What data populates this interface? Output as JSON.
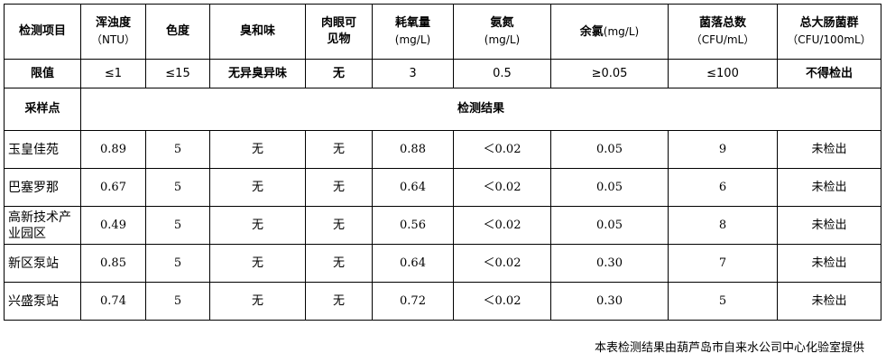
{
  "header": [
    {
      "name": "检测项目",
      "unit": ""
    },
    {
      "name": "浑浊度",
      "unit": "（NTU）"
    },
    {
      "name": "色度",
      "unit": ""
    },
    {
      "name": "臭和味",
      "unit": ""
    },
    {
      "name": "肉眼可见物",
      "unit": ""
    },
    {
      "name": "耗氧量",
      "unit": "(mg/L)"
    },
    {
      "name": "氨氮",
      "unit": "(mg/L)"
    },
    {
      "name": "余氯",
      "unit": "(mg/L)"
    },
    {
      "name": "菌落总数",
      "unit": "（CFU/mL）"
    },
    {
      "name": "总大肠菌群",
      "unit": "（CFU/100mL）"
    }
  ],
  "limits": [
    "限值",
    "≤1",
    "≤15",
    "无异臭异味",
    "无",
    "3",
    "0.5",
    "≥0.05",
    "≤100",
    "不得检出"
  ],
  "section": {
    "label": "采样点",
    "results": "检测结果"
  },
  "rows": [
    [
      "玉皇佳苑",
      "0.89",
      "5",
      "无",
      "无",
      "0.88",
      "＜0.02",
      "0.05",
      "9",
      "未检出"
    ],
    [
      "巴塞罗那",
      "0.67",
      "5",
      "无",
      "无",
      "0.64",
      "＜0.02",
      "0.05",
      "6",
      "未检出"
    ],
    [
      "高新技术产业园区",
      "0.49",
      "5",
      "无",
      "无",
      "0.56",
      "＜0.02",
      "0.05",
      "8",
      "未检出"
    ],
    [
      "新区泵站",
      "0.85",
      "5",
      "无",
      "无",
      "0.64",
      "＜0.02",
      "0.30",
      "7",
      "未检出"
    ],
    [
      "兴盛泵站",
      "0.74",
      "5",
      "无",
      "无",
      "0.72",
      "＜0.02",
      "0.30",
      "5",
      "未检出"
    ]
  ],
  "footer": "本表检测结果由葫芦岛市自来水公司中心化验室提供"
}
